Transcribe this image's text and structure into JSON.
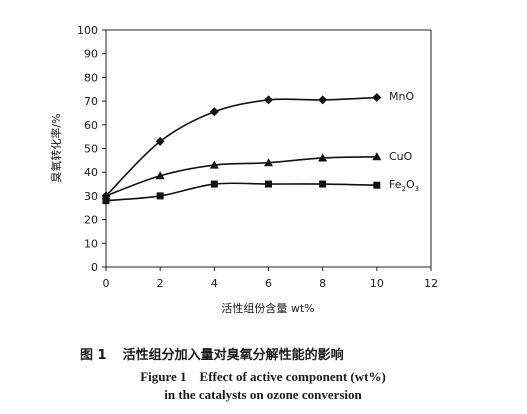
{
  "chart_data": {
    "type": "line",
    "xlabel": "活性组份含量 wt%",
    "ylabel": "臭氧转化率/%",
    "xlim": [
      0,
      12
    ],
    "ylim": [
      0,
      100
    ],
    "xticks": [
      0,
      2,
      4,
      6,
      8,
      10,
      12
    ],
    "yticks": [
      0,
      10,
      20,
      30,
      40,
      50,
      60,
      70,
      80,
      90,
      100
    ],
    "grid": false,
    "legend": "inline labels at right end of each line",
    "series": [
      {
        "name": "MnO",
        "marker": "diamond",
        "x": [
          0,
          2,
          4,
          6,
          8,
          10
        ],
        "y": [
          30,
          53,
          65.5,
          70.5,
          70.5,
          71.5
        ]
      },
      {
        "name": "CuO",
        "marker": "triangle",
        "x": [
          0,
          2,
          4,
          6,
          8,
          10
        ],
        "y": [
          30,
          38.5,
          43,
          44,
          46,
          46.5
        ]
      },
      {
        "name": "Fe2O3",
        "label_main": "Fe",
        "label_sub1": "2",
        "label_mid": "O",
        "label_sub2": "3",
        "marker": "square",
        "x": [
          0,
          2,
          4,
          6,
          8,
          10
        ],
        "y": [
          28,
          30,
          35,
          35,
          35,
          34.5
        ]
      }
    ]
  },
  "caption": {
    "cn_label": "图 1",
    "cn_text": "活性组分加入量对臭氧分解性能的影响",
    "en_line1": "Figure 1    Effect of active component (wt%)",
    "en_line2": "in the catalysts on ozone conversion"
  }
}
